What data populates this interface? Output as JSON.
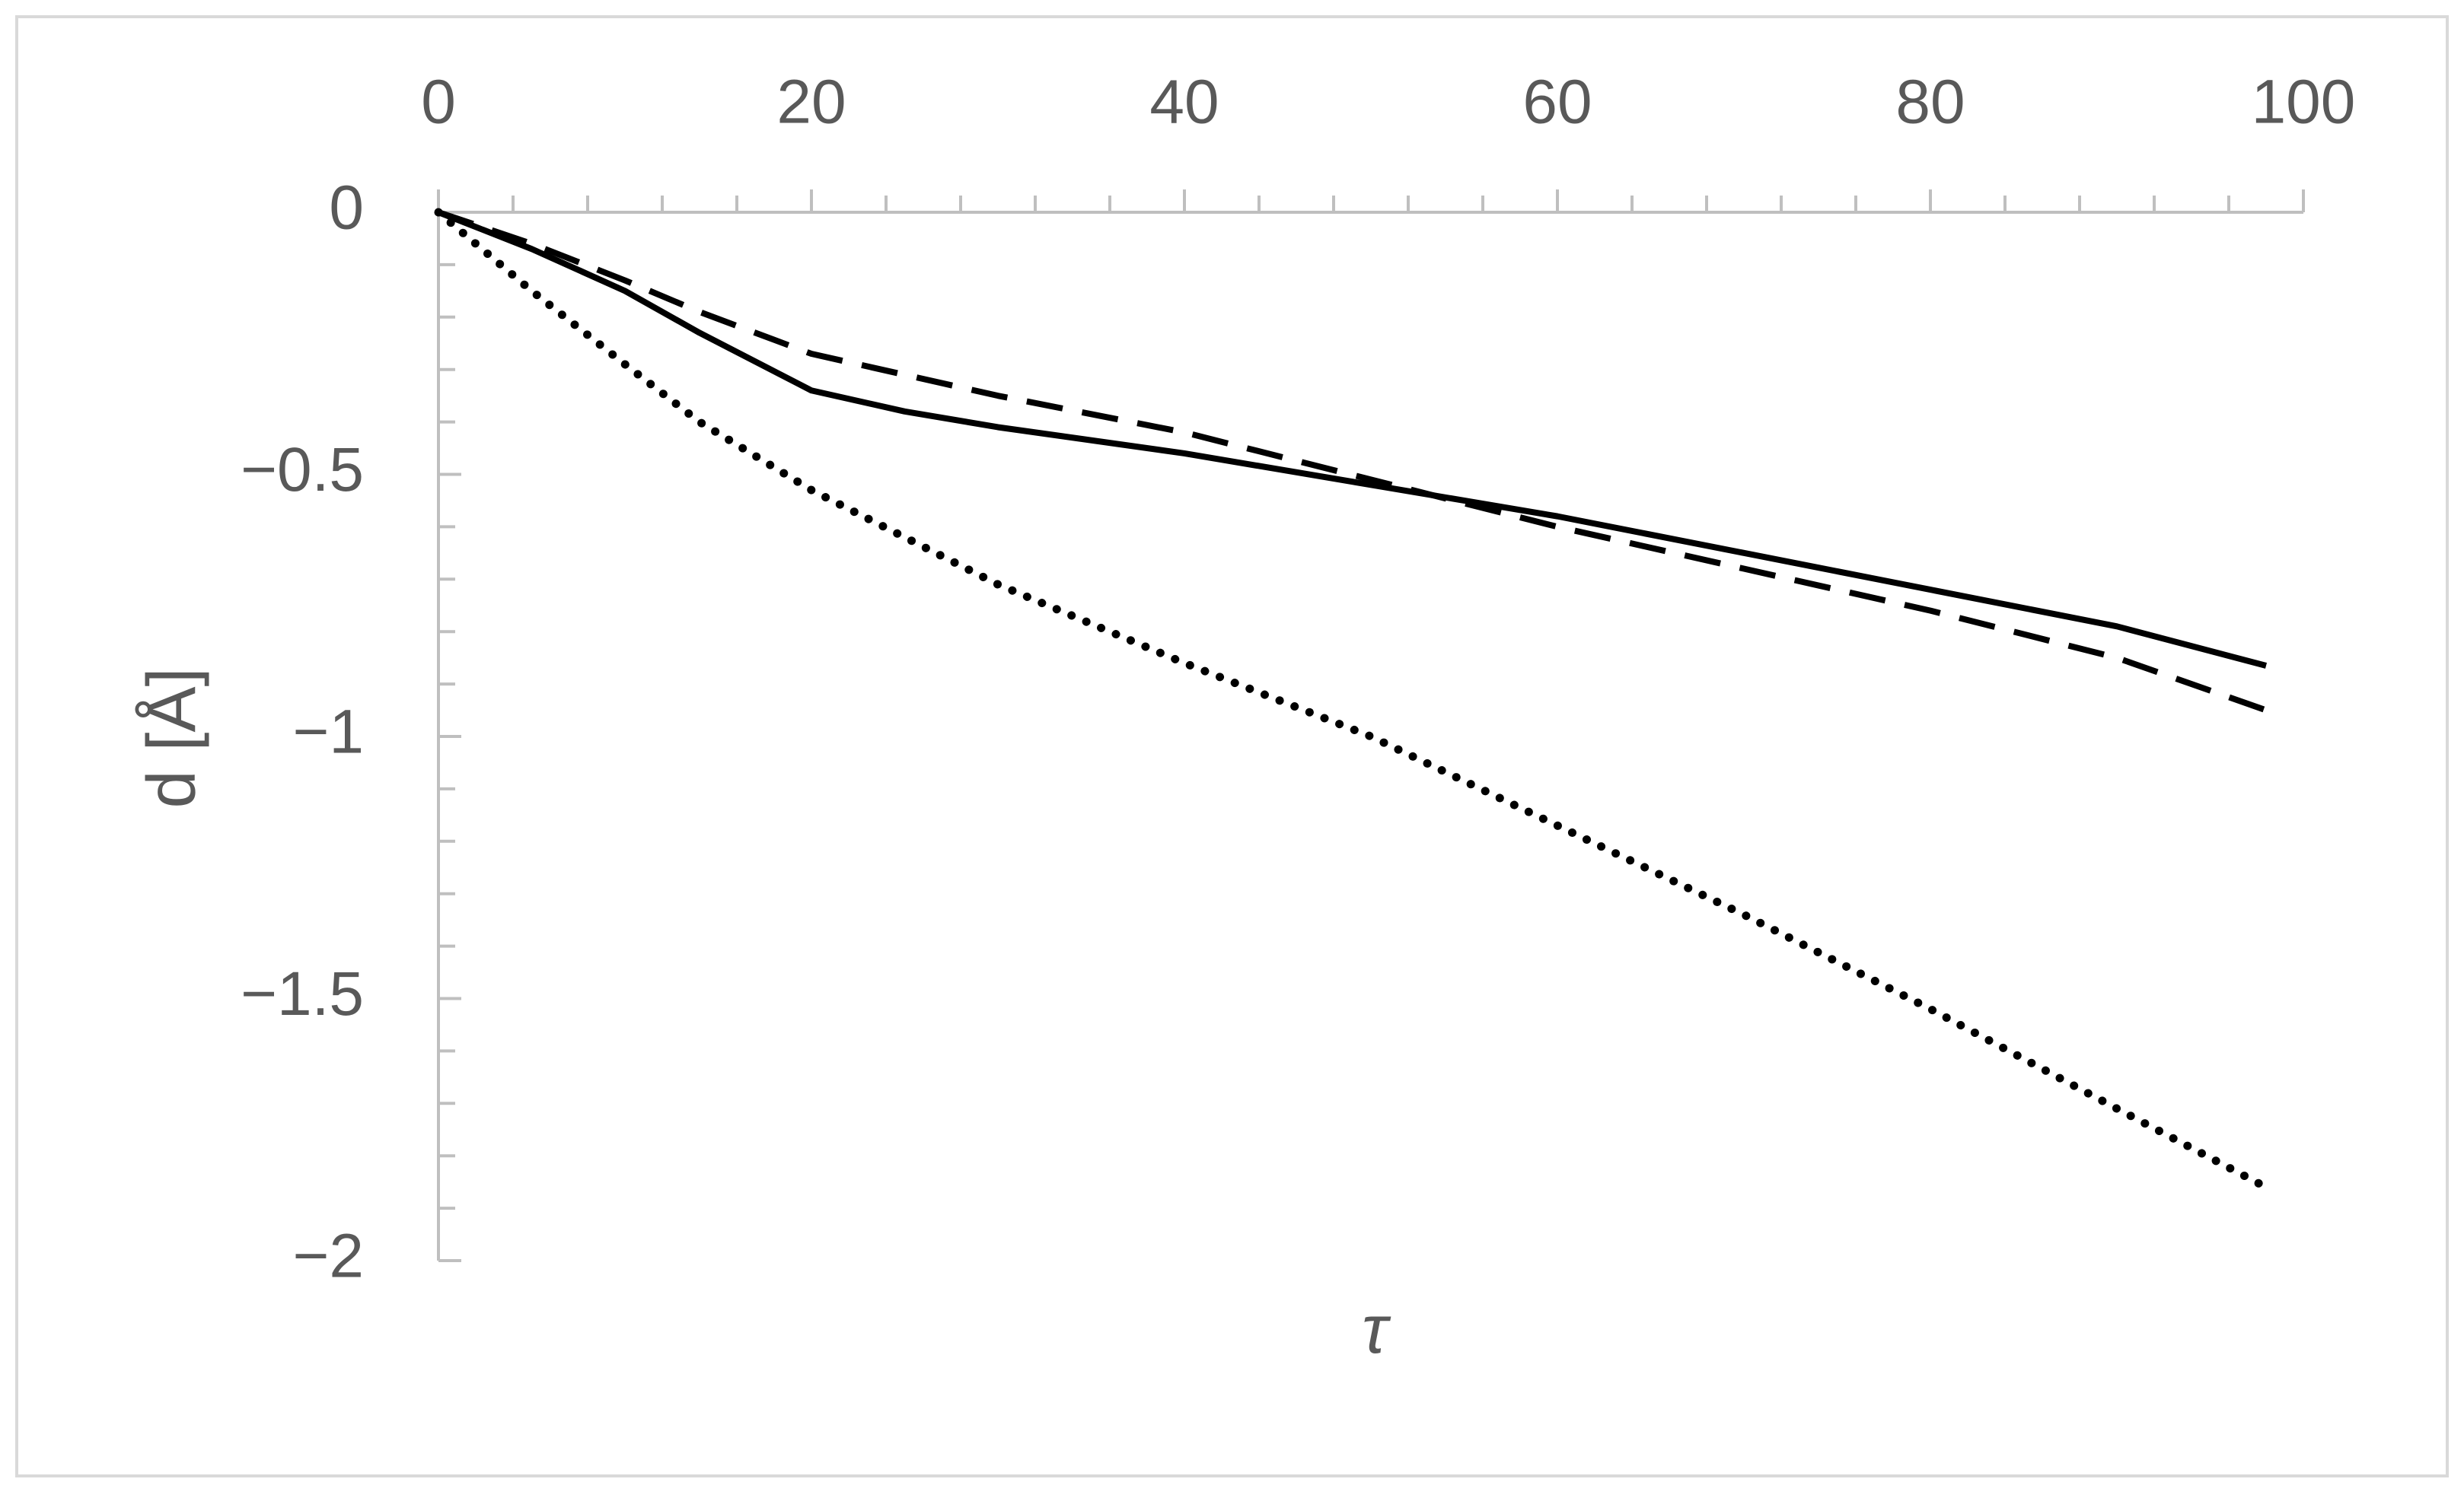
{
  "chart_data": {
    "type": "line",
    "x_label": "τ",
    "y_label": "d [Å]",
    "x": [
      0,
      5,
      10,
      14,
      20,
      25,
      30,
      40,
      50,
      60,
      70,
      80,
      90,
      98
    ],
    "series": [
      {
        "color": "#000000",
        "dash": "solid",
        "values": [
          0,
          -0.07,
          -0.15,
          -0.23,
          -0.34,
          -0.38,
          -0.41,
          -0.46,
          -0.52,
          -0.58,
          -0.65,
          -0.72,
          -0.79,
          -0.865
        ]
      },
      {
        "color": "#000000",
        "dash": "dashed",
        "values": [
          0,
          -0.06,
          -0.13,
          -0.19,
          -0.27,
          -0.31,
          -0.35,
          -0.42,
          -0.51,
          -0.6,
          -0.68,
          -0.76,
          -0.85,
          -0.95
        ]
      },
      {
        "color": "#000000",
        "dash": "dotted",
        "values": [
          0,
          -0.15,
          -0.29,
          -0.4,
          -0.53,
          -0.62,
          -0.71,
          -0.86,
          -1.0,
          -1.17,
          -1.34,
          -1.52,
          -1.71,
          -1.86
        ]
      }
    ],
    "xlim": [
      0,
      100
    ],
    "xticks": [
      0,
      20,
      40,
      60,
      80,
      100
    ],
    "x_axis_position": "top",
    "ylim": [
      -2,
      0
    ],
    "yticks": [
      0,
      {
        "value": -0.5,
        "label": "−0.5"
      },
      {
        "value": -1,
        "label": "−1"
      },
      {
        "value": -1.5,
        "label": "−1.5"
      },
      {
        "value": -2,
        "label": "−2"
      }
    ],
    "grid": false
  }
}
